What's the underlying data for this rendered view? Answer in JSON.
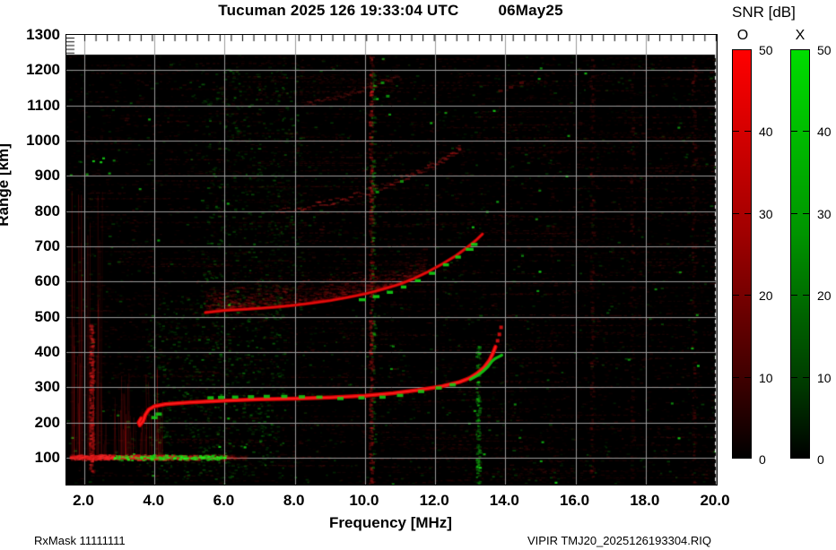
{
  "header": {
    "title_left": "Tucuman 2025 126 19:33:04 UTC",
    "title_right": "06May25"
  },
  "footer": {
    "left": "RxMask 11111111",
    "right": "VIPIR  TMJ20_2025126193304.RIQ"
  },
  "colorbar_panel": {
    "title": "SNR [dB]",
    "tick_labels": [
      "50",
      "40",
      "30",
      "20",
      "10",
      "0"
    ],
    "tick_values": [
      50,
      40,
      30,
      20,
      10,
      0
    ],
    "range": [
      0,
      50
    ],
    "bars": [
      {
        "mode": "O",
        "top_color": "#ff0000"
      },
      {
        "mode": "X",
        "top_color": "#00dd00"
      }
    ]
  },
  "chart_data": {
    "type": "heatmap",
    "title": "Tucuman 2025 126 19:33:04 UTC 06May25",
    "xlabel": "Frequency [MHz]",
    "ylabel": "Range [km]",
    "xlim": [
      1.5,
      20.0
    ],
    "ylim": [
      24,
      1300
    ],
    "x_tick_labels": [
      "2.0",
      "4.0",
      "6.0",
      "8.0",
      "10.0",
      "12.0",
      "14.0",
      "16.0",
      "18.0",
      "20.0"
    ],
    "x_tick_values": [
      2,
      4,
      6,
      8,
      10,
      12,
      14,
      16,
      18,
      20
    ],
    "y_tick_values": [
      1300,
      1200,
      1100,
      1000,
      900,
      800,
      700,
      600,
      500,
      400,
      300,
      200,
      100
    ],
    "grid": {
      "x_step_mhz": 2,
      "y_step_km": 100,
      "color": "#9a9a9a"
    },
    "legend_position": "right",
    "background": "#000000",
    "data_top_km": 1244,
    "modes": {
      "O": "#e60000",
      "X": "#00cc00"
    },
    "traces": {
      "hop1_O": [
        [
          3.62,
          212
        ],
        [
          3.55,
          200
        ],
        [
          3.58,
          192
        ],
        [
          3.68,
          204
        ],
        [
          3.74,
          222
        ],
        [
          3.84,
          237
        ],
        [
          4.0,
          246
        ],
        [
          4.3,
          252
        ],
        [
          5.0,
          257
        ],
        [
          6.0,
          262
        ],
        [
          7.0,
          266
        ],
        [
          8.0,
          268
        ],
        [
          9.0,
          271
        ],
        [
          10.0,
          276
        ],
        [
          10.8,
          283
        ],
        [
          11.5,
          292
        ],
        [
          12.2,
          303
        ],
        [
          12.7,
          315
        ],
        [
          13.0,
          327
        ],
        [
          13.2,
          340
        ],
        [
          13.4,
          357
        ],
        [
          13.55,
          377
        ],
        [
          13.65,
          397
        ],
        [
          13.72,
          415
        ]
      ],
      "hop1_O_tip": [
        [
          13.78,
          432
        ],
        [
          13.83,
          450
        ],
        [
          13.88,
          470
        ]
      ],
      "hop1_X_patches": [
        [
          4.0,
          214
        ],
        [
          4.12,
          224
        ],
        [
          5.6,
          270
        ],
        [
          5.9,
          271
        ],
        [
          6.3,
          272
        ],
        [
          6.75,
          273
        ],
        [
          7.2,
          274
        ],
        [
          7.7,
          274
        ],
        [
          8.2,
          273
        ],
        [
          8.7,
          272
        ],
        [
          9.3,
          268
        ],
        [
          9.9,
          270
        ],
        [
          10.5,
          272
        ],
        [
          11.0,
          277
        ],
        [
          11.6,
          288
        ],
        [
          12.1,
          298
        ],
        [
          12.5,
          307
        ]
      ],
      "hop1_X_cusp": [
        [
          13.0,
          322
        ],
        [
          13.2,
          333
        ],
        [
          13.35,
          344
        ],
        [
          13.5,
          358
        ],
        [
          13.62,
          374
        ],
        [
          13.72,
          382
        ],
        [
          13.82,
          387
        ],
        [
          13.9,
          391
        ]
      ],
      "hop2_O": [
        [
          5.45,
          512
        ],
        [
          6.0,
          518
        ],
        [
          6.5,
          521
        ],
        [
          7.0,
          524
        ],
        [
          7.5,
          528
        ],
        [
          8.0,
          533
        ],
        [
          8.5,
          539
        ],
        [
          9.0,
          546
        ],
        [
          9.5,
          555
        ],
        [
          10.0,
          565
        ],
        [
          10.5,
          578
        ],
        [
          11.0,
          593
        ],
        [
          11.4,
          609
        ],
        [
          11.8,
          628
        ],
        [
          12.2,
          650
        ],
        [
          12.6,
          674
        ],
        [
          12.9,
          696
        ],
        [
          13.15,
          716
        ],
        [
          13.35,
          735
        ]
      ],
      "hop2_X_patches": [
        [
          9.9,
          549
        ],
        [
          10.3,
          558
        ],
        [
          10.7,
          570
        ],
        [
          11.1,
          585
        ],
        [
          11.5,
          603
        ],
        [
          11.9,
          624
        ],
        [
          12.3,
          648
        ],
        [
          12.65,
          670
        ],
        [
          12.95,
          692
        ],
        [
          13.1,
          706
        ]
      ],
      "hop3_O": [
        [
          7.4,
          800
        ],
        [
          8.2,
          812
        ],
        [
          9.0,
          828
        ],
        [
          9.8,
          850
        ],
        [
          10.6,
          878
        ],
        [
          11.2,
          902
        ],
        [
          11.8,
          928
        ],
        [
          12.3,
          955
        ],
        [
          12.7,
          982
        ]
      ],
      "hop3_X_blobs": [
        [
          10.3,
          858
        ],
        [
          11.0,
          888
        ]
      ],
      "hop4_O": [
        [
          8.2,
          1105
        ],
        [
          8.9,
          1120
        ],
        [
          9.6,
          1140
        ],
        [
          10.3,
          1163
        ],
        [
          10.9,
          1186
        ]
      ],
      "hop4_red_blobs": [
        [
          13.8,
          1145
        ],
        [
          14.1,
          1155
        ],
        [
          14.4,
          1168
        ]
      ],
      "hop4_X_blobs": [
        [
          10.45,
          1168
        ],
        [
          10.6,
          1130
        ]
      ]
    },
    "e_region": {
      "f_range": [
        1.55,
        6.6
      ],
      "km_center": 102,
      "km_spread": 9,
      "green_f_range": [
        2.8,
        6.0
      ]
    },
    "spread_f_cloud": {
      "f_range": [
        5.4,
        11.7
      ],
      "km_above_max": 85
    },
    "rfi_columns": [
      {
        "f": 10.15,
        "km": [
          24,
          1240
        ],
        "color": "red",
        "density": 420,
        "alpha": 0.38
      },
      {
        "f": 10.22,
        "km": [
          60,
          1200
        ],
        "color": "green",
        "density": 140,
        "alpha": 0.35
      },
      {
        "f": 2.18,
        "km": [
          60,
          480
        ],
        "color": "red",
        "density": 300,
        "alpha": 0.5
      },
      {
        "f": 13.2,
        "km": [
          24,
          420
        ],
        "color": "green",
        "density": 150,
        "alpha": 0.45
      },
      {
        "f": 16.45,
        "km": [
          24,
          1240
        ],
        "color": "red",
        "density": 170,
        "alpha": 0.2
      },
      {
        "f": 17.6,
        "km": [
          24,
          1240
        ],
        "color": "red",
        "density": 130,
        "alpha": 0.15
      },
      {
        "f": 19.35,
        "km": [
          24,
          1240
        ],
        "color": "red",
        "density": 160,
        "alpha": 0.2
      },
      {
        "f": 15.3,
        "km": [
          24,
          1240
        ],
        "color": "red",
        "density": 90,
        "alpha": 0.12
      }
    ],
    "green_noise_zones": [
      {
        "f_range": [
          3.7,
          7.7
        ],
        "km_range": [
          40,
          560
        ],
        "count": 800
      },
      {
        "f_range": [
          5.3,
          8.2
        ],
        "km_range": [
          520,
          1210
        ],
        "count": 550
      }
    ]
  }
}
